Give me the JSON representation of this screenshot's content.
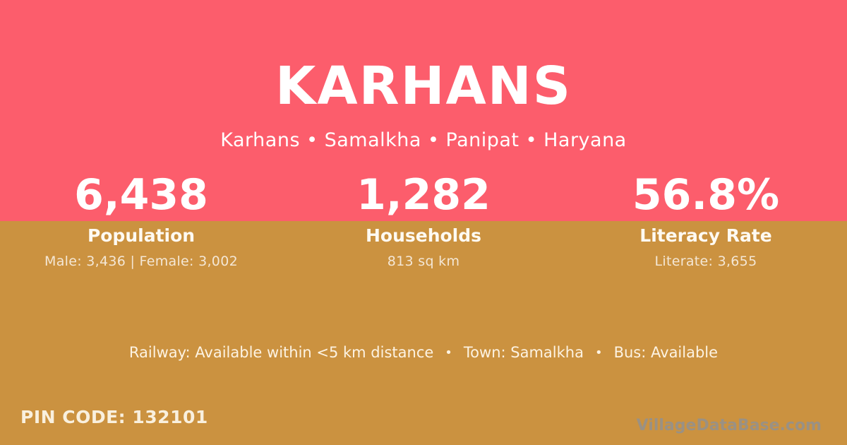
{
  "colors": {
    "hero_background": "#fc5d6c",
    "body_background": "#cb9240",
    "primary_text": "#ffffff",
    "cream_text": "#f9f0de",
    "watermark_text": "#9a9184"
  },
  "hero": {
    "title": "KARHANS",
    "breadcrumb": "Karhans • Samalkha • Panipat • Haryana"
  },
  "stats": [
    {
      "value": "6,438",
      "label": "Population",
      "detail": "Male: 3,436 | Female: 3,002"
    },
    {
      "value": "1,282",
      "label": "Households",
      "detail": "813 sq km"
    },
    {
      "value": "56.8%",
      "label": "Literacy Rate",
      "detail": "Literate: 3,655"
    }
  ],
  "amenities": {
    "separator": "•",
    "railway": "Railway: Available within <5 km distance",
    "town": "Town: Samalkha",
    "bus": "Bus: Available"
  },
  "footer": {
    "pin_code": "PIN CODE: 132101",
    "watermark": "VillageDataBase.com"
  }
}
